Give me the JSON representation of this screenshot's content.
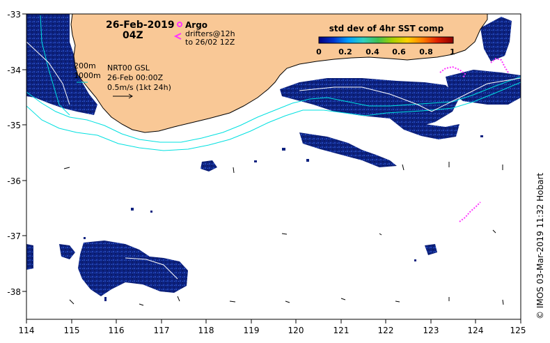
{
  "header": {
    "date": "26-Feb-2019",
    "hour": "04Z"
  },
  "legend_argo": {
    "argo_label": "Argo",
    "drifters_line1": "drifters@12h",
    "drifters_line2": "to 26/02 12Z",
    "argo_color": "#ff33ff"
  },
  "colorbar": {
    "title": "std dev of 4hr SST comp",
    "ticks": [
      "0",
      "0.2",
      "0.4",
      "0.6",
      "0.8",
      "1"
    ],
    "stops": [
      "#000080",
      "#0033cc",
      "#00a0ff",
      "#30d0c0",
      "#40c050",
      "#a8d000",
      "#ffd000",
      "#ff8000",
      "#e02000",
      "#8b0000"
    ]
  },
  "contours": {
    "c200": "200m",
    "c1000": "1000m",
    "contour_color": "#00e0e0"
  },
  "current_info": {
    "line1": "NRT00 GSL",
    "line2": "26-Feb 00:00Z",
    "line3": "0.5m/s (1kt 24h)"
  },
  "axes": {
    "x_ticks": [
      "114",
      "115",
      "116",
      "117",
      "118",
      "119",
      "120",
      "121",
      "122",
      "123",
      "124",
      "125"
    ],
    "y_ticks": [
      "-33",
      "-34",
      "-35",
      "-36",
      "-37",
      "-38"
    ]
  },
  "credit": "© IMOS 03-Mar-2019 11:32 Hobart",
  "colors": {
    "land": "#f9c896",
    "sst_fill": "#102a8c",
    "ocean": "#ffffff"
  }
}
